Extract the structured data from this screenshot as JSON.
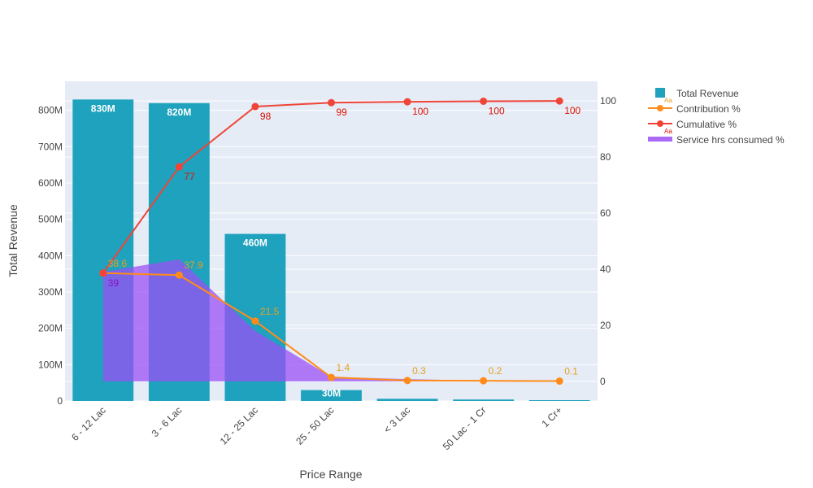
{
  "chart_data": {
    "type": "bar",
    "categories": [
      "6 - 12 Lac",
      "3 - 6 Lac",
      "12 - 25 Lac",
      "25 - 50 Lac",
      "< 3 Lac",
      "50 Lac - 1 Cr",
      "1 Cr+"
    ],
    "xlabel": "Price Range",
    "ylabel": "Total Revenue",
    "ylim": [
      0,
      880
    ],
    "y2lim": [
      -7,
      107
    ],
    "y_ticks": [
      {
        "value": 0,
        "label": "0"
      },
      {
        "value": 100,
        "label": "100M"
      },
      {
        "value": 200,
        "label": "200M"
      },
      {
        "value": 300,
        "label": "300M"
      },
      {
        "value": 400,
        "label": "400M"
      },
      {
        "value": 500,
        "label": "500M"
      },
      {
        "value": 600,
        "label": "600M"
      },
      {
        "value": 700,
        "label": "700M"
      },
      {
        "value": 800,
        "label": "800M"
      }
    ],
    "y2_ticks": [
      {
        "value": 0,
        "label": "0"
      },
      {
        "value": 20,
        "label": "20"
      },
      {
        "value": 40,
        "label": "40"
      },
      {
        "value": 60,
        "label": "60"
      },
      {
        "value": 80,
        "label": "80"
      },
      {
        "value": 100,
        "label": "100"
      }
    ],
    "grid": true,
    "legend_position": "top-right",
    "series": [
      {
        "name": "Total Revenue",
        "type": "bar",
        "axis": "y",
        "color": "#1fa2bd",
        "values": [
          830,
          820,
          460,
          30,
          6,
          4,
          1
        ],
        "labels": [
          "830M",
          "820M",
          "460M",
          "30M",
          "",
          "",
          ""
        ]
      },
      {
        "name": "Contribution %",
        "type": "line",
        "axis": "y2",
        "color": "#ff8c1a",
        "label_color": "#e6a020",
        "values": [
          38.6,
          37.9,
          21.5,
          1.4,
          0.3,
          0.2,
          0.1
        ],
        "labels": [
          "38.6",
          "37.9",
          "21.5",
          "1.4",
          "0.3",
          "0.2",
          "0.1"
        ]
      },
      {
        "name": "Cumulative %",
        "type": "line",
        "axis": "y2",
        "color": "#f04438",
        "label_color": "#dd1100",
        "values": [
          38.6,
          76.5,
          98.0,
          99.4,
          99.7,
          99.9,
          100
        ],
        "labels": [
          "39",
          "77",
          "98",
          "99",
          "100",
          "100",
          "100"
        ]
      },
      {
        "name": "Service hrs consumed %",
        "type": "area",
        "axis": "y2",
        "color": "#9b50f5",
        "values": [
          39,
          43.5,
          18,
          1.6,
          0.8,
          0.2,
          0.1
        ]
      }
    ]
  }
}
